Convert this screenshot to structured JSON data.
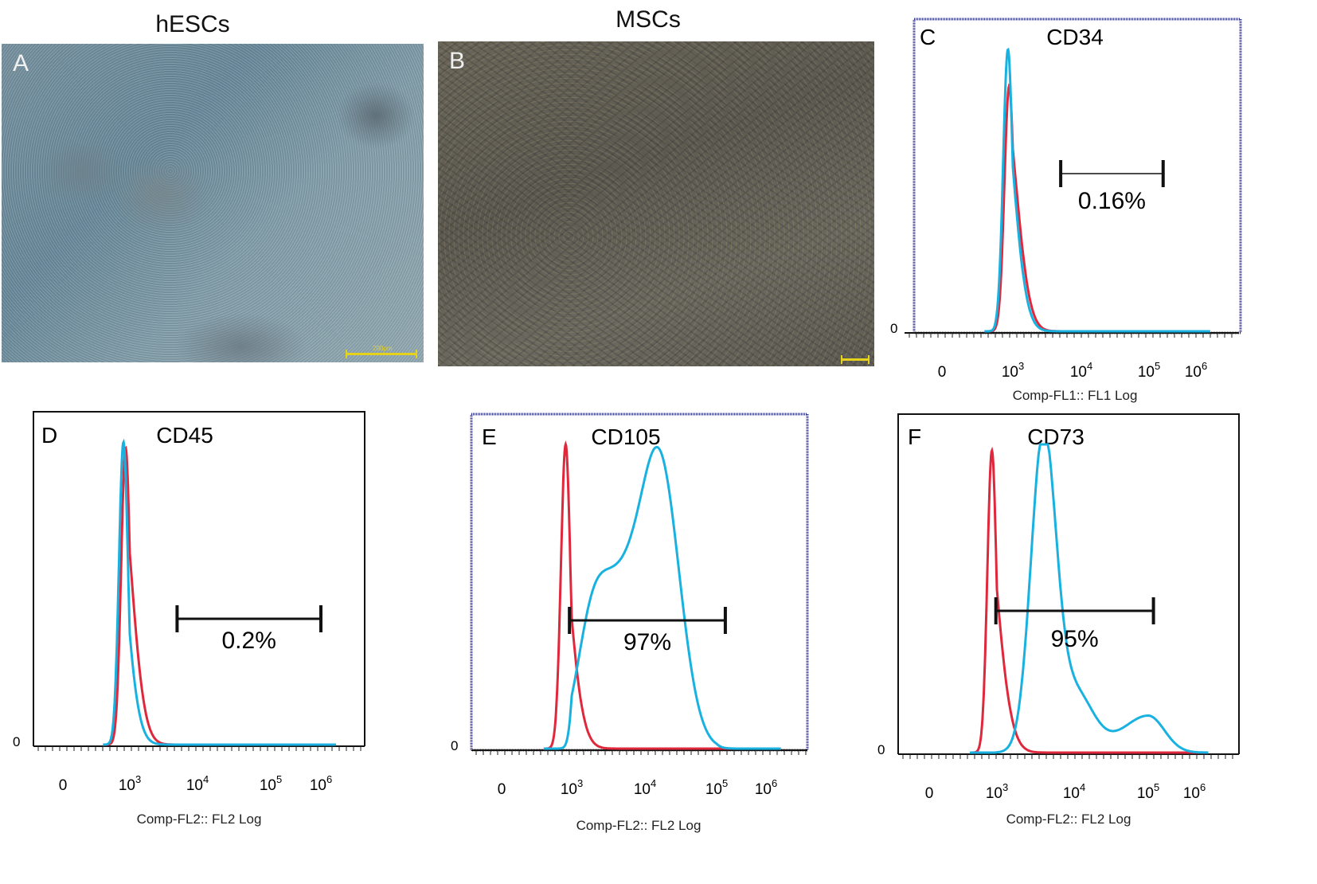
{
  "figure": {
    "panels": [
      {
        "letter": "A",
        "title": "hESCs",
        "type": "micrograph",
        "scale_label": "200μm"
      },
      {
        "letter": "B",
        "title": "MSCs",
        "type": "micrograph",
        "scale_label": ""
      },
      {
        "letter": "C",
        "title": "CD34",
        "type": "histogram"
      },
      {
        "letter": "D",
        "title": "CD45",
        "type": "histogram"
      },
      {
        "letter": "E",
        "title": "CD105",
        "type": "histogram"
      },
      {
        "letter": "F",
        "title": "CD73",
        "type": "histogram"
      }
    ],
    "colors": {
      "control": "#e0283c",
      "marker": "#19b2e0",
      "frame_blue": "#2a2a8a",
      "frame_black": "#111111"
    }
  },
  "chart_data": [
    {
      "panel": "C",
      "type": "area",
      "title": "CD34",
      "xlabel": "Comp-FL1:: FL1 Log",
      "x_ticks": [
        "0",
        "10^3",
        "10^4",
        "10^5",
        "10^6"
      ],
      "y_tick": "0",
      "gate_label": "0.16%",
      "gate_range": [
        5000,
        200000
      ],
      "series": [
        {
          "color": "#e0283c",
          "peak_x": 700,
          "peak_height": 0.87
        },
        {
          "color": "#19b2e0",
          "peak_x": 620,
          "peak_height": 1.0
        }
      ]
    },
    {
      "panel": "D",
      "type": "area",
      "title": "CD45",
      "xlabel": "Comp-FL2:: FL2 Log",
      "x_ticks": [
        "0",
        "10^3",
        "10^4",
        "10^5",
        "10^6"
      ],
      "y_tick": "0",
      "gate_label": "0.2%",
      "gate_range": [
        5000,
        1000000
      ],
      "series": [
        {
          "color": "#e0283c",
          "peak_x": 650,
          "peak_height": 0.98
        },
        {
          "color": "#19b2e0",
          "peak_x": 520,
          "peak_height": 1.0
        }
      ]
    },
    {
      "panel": "E",
      "type": "area",
      "title": "CD105",
      "xlabel": "Comp-FL2:: FL2 Log",
      "x_ticks": [
        "0",
        "10^3",
        "10^4",
        "10^5",
        "10^6"
      ],
      "y_tick": "0",
      "gate_label": "97%",
      "gate_range": [
        800,
        150000
      ],
      "series": [
        {
          "color": "#e0283c",
          "peak_x": 550,
          "peak_height": 1.0
        },
        {
          "color": "#19b2e0",
          "peak_x": 15000,
          "peak_height": 0.94
        }
      ]
    },
    {
      "panel": "F",
      "type": "area",
      "title": "CD73",
      "xlabel": "Comp-FL2:: FL2 Log",
      "x_ticks": [
        "0",
        "10^3",
        "10^4",
        "10^5",
        "10^6"
      ],
      "y_tick": "0",
      "gate_label": "95%",
      "gate_range": [
        900,
        130000
      ],
      "series": [
        {
          "color": "#e0283c",
          "peak_x": 600,
          "peak_height": 0.98
        },
        {
          "color": "#19b2e0",
          "peak_x": 4000,
          "peak_height": 1.0
        }
      ]
    }
  ]
}
